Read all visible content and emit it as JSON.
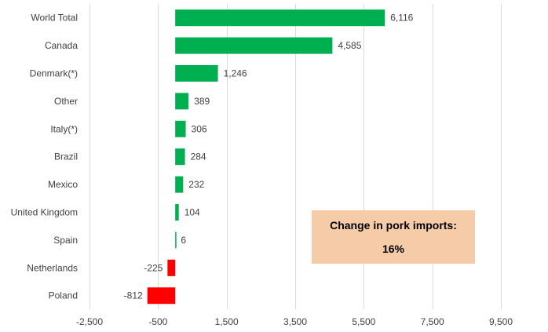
{
  "chart_data": {
    "type": "bar",
    "orientation": "horizontal",
    "categories": [
      "World Total",
      "Canada",
      "Denmark(*)",
      "Other",
      "Italy(*)",
      "Brazil",
      "Mexico",
      "United Kingdom",
      "Spain",
      "Netherlands",
      "Poland"
    ],
    "values": [
      6116,
      4585,
      1246,
      389,
      306,
      284,
      232,
      104,
      6,
      -225,
      -812
    ],
    "value_labels": [
      "6,116",
      "4,585",
      "1,246",
      "389",
      "306",
      "284",
      "232",
      "104",
      "6",
      "-225",
      "-812"
    ],
    "xlim": [
      -2500,
      9500
    ],
    "xticks": [
      -2500,
      -500,
      1500,
      3500,
      5500,
      7500,
      9500
    ],
    "xtick_labels": [
      "-2,500",
      "-500",
      "1,500",
      "3,500",
      "5,500",
      "7,500",
      "9,500"
    ],
    "grid": "vertical",
    "colors": {
      "positive": "#00b050",
      "negative": "#ff0000",
      "grid": "#d9d9d9",
      "annotation_bg": "#f6cba8"
    },
    "annotation": {
      "line1": "Change in pork imports:",
      "line2": "16%"
    }
  }
}
